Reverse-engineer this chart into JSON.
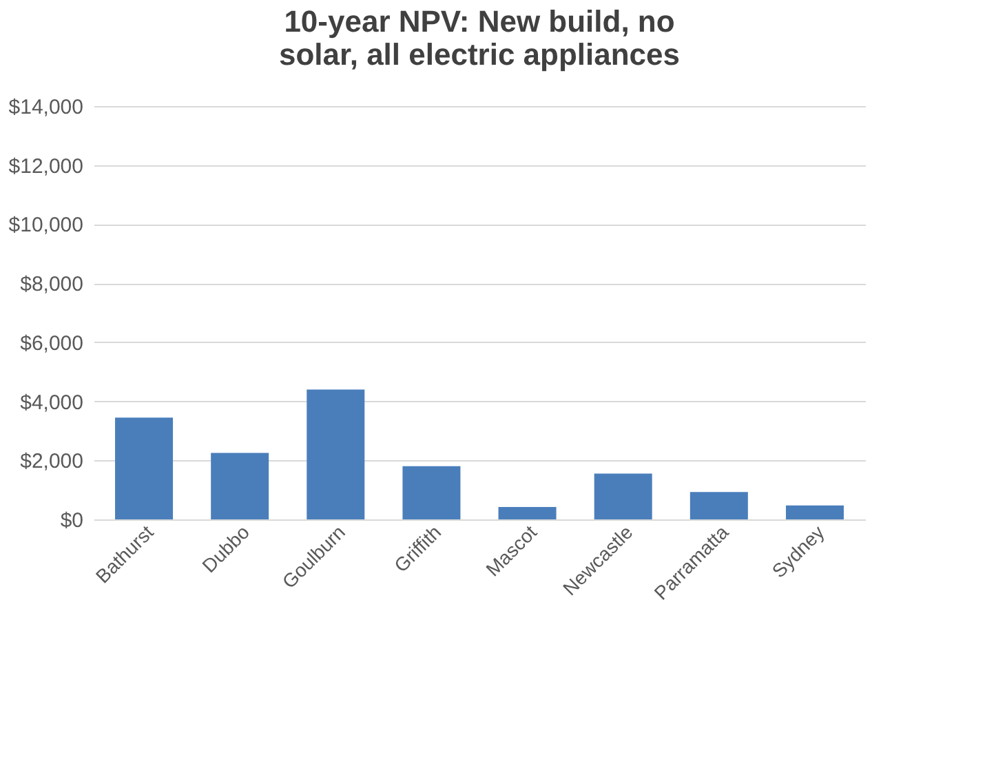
{
  "chart_data": {
    "type": "bar",
    "title": "10-year NPV: New build, no solar, all electric appliances",
    "categories": [
      "Bathurst",
      "Dubbo",
      "Goulburn",
      "Griffith",
      "Mascot",
      "Newcastle",
      "Parramatta",
      "Sydney"
    ],
    "values": [
      3450,
      2250,
      4400,
      1800,
      420,
      1550,
      930,
      470
    ],
    "color": "#4a7ebb",
    "ylim": [
      0,
      14000
    ],
    "yticks": [
      {
        "value": 0,
        "label": "$0"
      },
      {
        "value": 2000,
        "label": "$2,000"
      },
      {
        "value": 4000,
        "label": "$4,000"
      },
      {
        "value": 6000,
        "label": "$6,000"
      },
      {
        "value": 8000,
        "label": "$8,000"
      },
      {
        "value": 10000,
        "label": "$10,000"
      },
      {
        "value": 12000,
        "label": "$12,000"
      },
      {
        "value": 14000,
        "label": "$14,000"
      }
    ],
    "grid": "y"
  }
}
